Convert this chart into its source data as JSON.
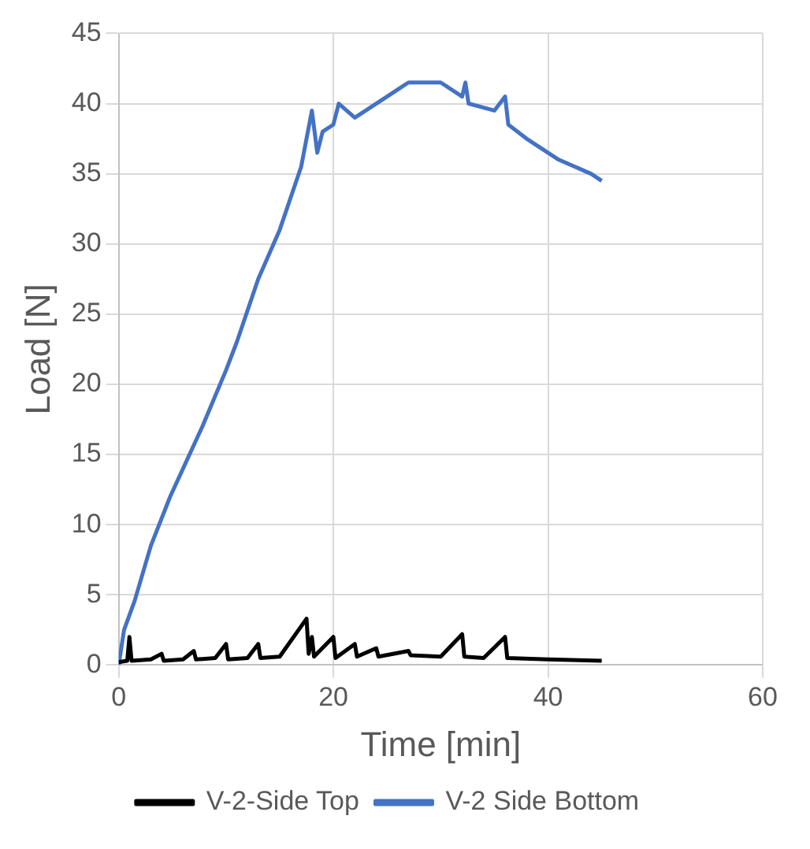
{
  "chart_data": {
    "type": "line",
    "xlabel": "Time [min]",
    "ylabel": "Load [N]",
    "xlim": [
      0,
      60
    ],
    "xticks": [
      0,
      20,
      40,
      60
    ],
    "ylim": [
      0,
      45
    ],
    "yticks": [
      0,
      5,
      10,
      15,
      20,
      25,
      30,
      35,
      40,
      45
    ],
    "grid": true,
    "legend": "bottom",
    "marker": "none",
    "line_style": "solid",
    "series": [
      {
        "name": "V-2-Side Top",
        "color": "#000000",
        "x": [
          0,
          0.8,
          1,
          1.2,
          3,
          4,
          4.2,
          6,
          7,
          7.2,
          9,
          10,
          10.2,
          12,
          13,
          13.2,
          15,
          17.5,
          17.7,
          18,
          18.2,
          20,
          20.2,
          22,
          22.2,
          24,
          24.2,
          27,
          27.2,
          30,
          32,
          32.2,
          34,
          36,
          36.2,
          40,
          45
        ],
        "values": [
          0.2,
          0.3,
          2,
          0.3,
          0.4,
          0.8,
          0.3,
          0.4,
          1,
          0.4,
          0.5,
          1.5,
          0.4,
          0.5,
          1.5,
          0.5,
          0.6,
          3.3,
          0.8,
          2,
          0.6,
          2,
          0.5,
          1.5,
          0.6,
          1.2,
          0.6,
          1,
          0.7,
          0.6,
          2.2,
          0.6,
          0.5,
          2,
          0.5,
          0.4,
          0.3
        ]
      },
      {
        "name": "V-2 Side Bottom",
        "color": "#4472c4",
        "x": [
          0,
          0.5,
          1.5,
          3,
          4.8,
          6,
          7.8,
          10,
          11,
          13,
          15,
          17,
          18,
          18.5,
          19,
          20,
          20.5,
          22,
          25,
          27,
          30,
          32,
          32.3,
          32.6,
          35,
          36,
          36.3,
          38,
          41,
          44,
          45
        ],
        "values": [
          0,
          2.5,
          4.6,
          8.5,
          12,
          14,
          17,
          21,
          23,
          27.5,
          31,
          35.5,
          39.5,
          36.5,
          38,
          38.5,
          40,
          39,
          40.5,
          41.5,
          41.5,
          40.5,
          41.5,
          40,
          39.5,
          40.5,
          38.5,
          37.5,
          36,
          35,
          34.5
        ]
      }
    ]
  }
}
